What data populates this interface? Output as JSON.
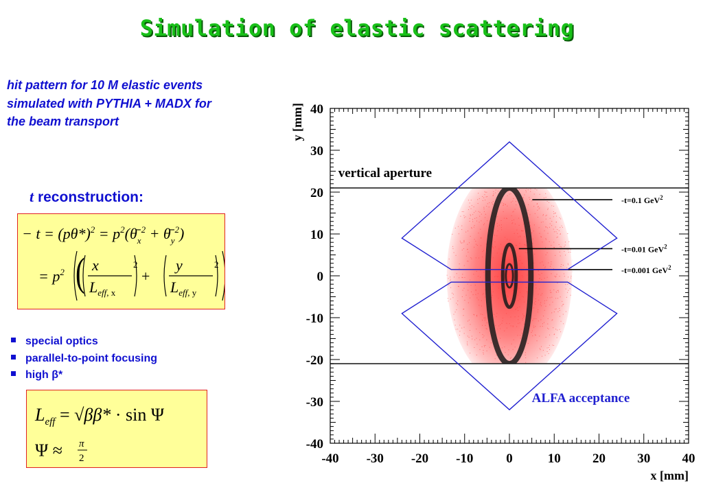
{
  "slide": {
    "title": "Simulation of elastic scattering",
    "intro": "hit pattern for 10 M elastic events simulated with PYTHIA + MADX for the beam transport",
    "reconstruction": {
      "t": "t",
      "label": " reconstruction:"
    },
    "bullets": [
      "special optics",
      "parallel-to-point focusing",
      "high β*"
    ],
    "colors": {
      "title": "#18c018",
      "text": "#1010d0",
      "box_fill": "#ffff99",
      "box_border": "#e02020",
      "hits": "#ff3c3c",
      "acceptance": "#2020d0"
    }
  },
  "formulas": {
    "t_reconstruction": {
      "line1": [
        "− t = ",
        "(pθ*)",
        "2",
        " = p",
        "2",
        "(θ̄",
        "x",
        "2",
        " + θ̄",
        "y",
        "2",
        ")"
      ],
      "line2": [
        "= p",
        "2",
        "x",
        "L",
        "eff",
        ", x",
        "2",
        "+",
        "y",
        "L",
        "eff",
        ", y",
        "2"
      ]
    },
    "leff": {
      "line1": [
        "L",
        "eff",
        " = ",
        "√ββ*",
        " · sin Ψ"
      ],
      "line2": [
        "Ψ",
        " ≈ ",
        "π",
        "2"
      ]
    }
  },
  "chart_data": {
    "type": "scatter",
    "description_free": true,
    "xlabel": "x [mm]",
    "ylabel": "y [mm]",
    "xlim": [
      -40,
      40
    ],
    "ylim": [
      -40,
      40
    ],
    "xticks": [
      "-40",
      "-30",
      "-20",
      "-10",
      "0",
      "10",
      "20",
      "30",
      "40"
    ],
    "yticks": [
      "40",
      "30",
      "20",
      "10",
      "0",
      "-10",
      "-20",
      "-30",
      "-40"
    ],
    "aperture_label": "vertical aperture",
    "aperture_y": [
      21,
      -21
    ],
    "acceptance_label": "ALFA acceptance",
    "acceptance_upper": [
      [
        0,
        32
      ],
      [
        24,
        9
      ],
      [
        13,
        1.5
      ],
      [
        -13,
        1.5
      ],
      [
        -24,
        9
      ]
    ],
    "acceptance_lower": [
      [
        0,
        -32
      ],
      [
        24,
        -9
      ],
      [
        13,
        -1.5
      ],
      [
        -13,
        -1.5
      ],
      [
        -24,
        -9
      ]
    ],
    "hit_region": {
      "x": [
        -14,
        14
      ],
      "y": [
        -21,
        21
      ]
    },
    "t_contours": [
      {
        "label": "-t=0.1 GeV",
        "sup": "2",
        "rx": 4.8,
        "ry": 21,
        "cx": 0,
        "cy": 0,
        "label_y": 19.5
      },
      {
        "label": "-t=0.01 GeV",
        "sup": "2",
        "rx": 1.5,
        "ry": 7.5,
        "cx": 0,
        "cy": 0,
        "label_y": 7.8
      },
      {
        "label": "-t=0.001 GeV",
        "sup": "2",
        "rx": 0.8,
        "ry": 2.8,
        "cx": 0,
        "cy": 0,
        "label_y": 2.8
      }
    ]
  }
}
